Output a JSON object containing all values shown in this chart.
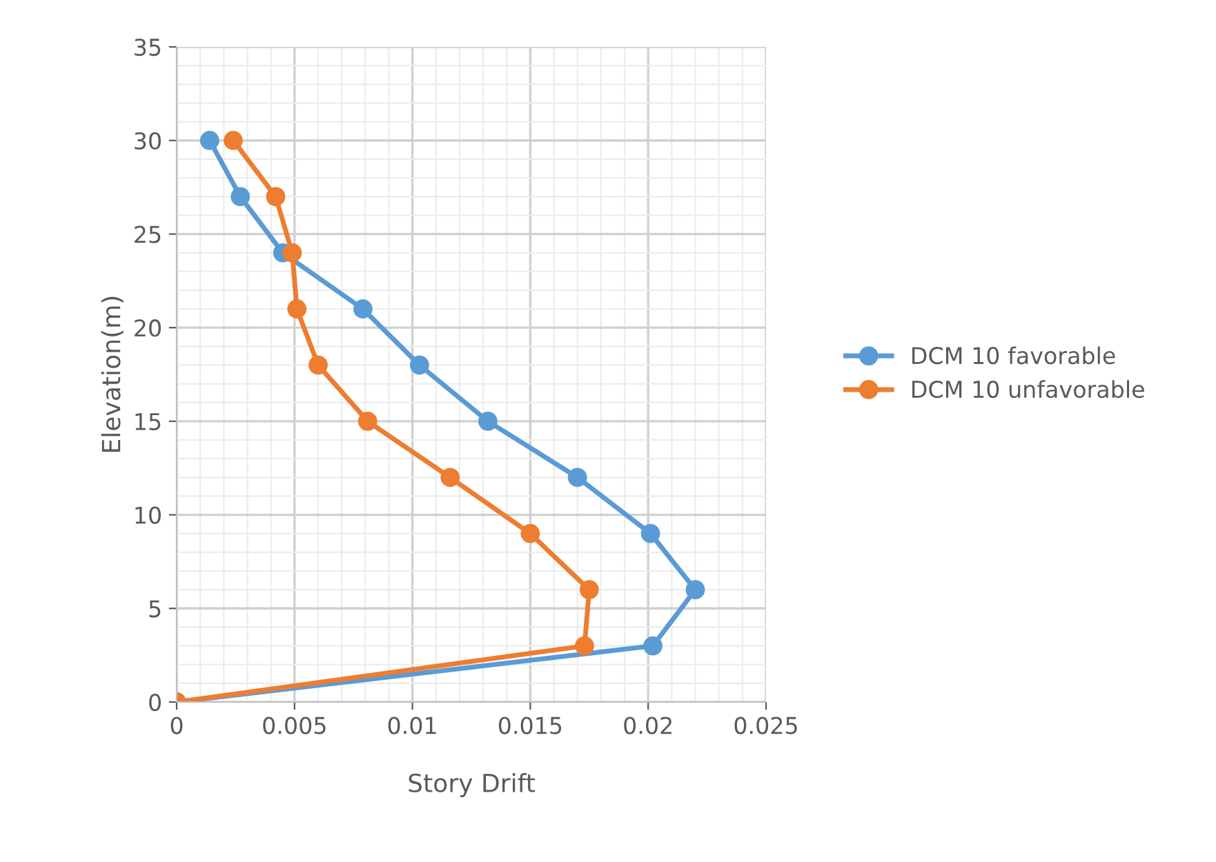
{
  "chart_data": {
    "type": "line",
    "xlabel": "Story Drift",
    "ylabel": "Elevation(m)",
    "series": [
      {
        "name": "DCM 10 favorable",
        "color": "#5b9bd5",
        "x": [
          0.0014,
          0.0027,
          0.0045,
          0.0079,
          0.0103,
          0.0132,
          0.017,
          0.0201,
          0.022,
          0.0202,
          0
        ],
        "values": [
          30,
          27,
          24,
          21,
          18,
          15,
          12,
          9,
          6,
          3,
          0
        ]
      },
      {
        "name": "DCM 10 unfavorable",
        "color": "#ed7d31",
        "x": [
          0.0024,
          0.0042,
          0.0049,
          0.0051,
          0.006,
          0.0081,
          0.0116,
          0.015,
          0.0175,
          0.0173,
          0
        ],
        "values": [
          30,
          27,
          24,
          21,
          18,
          15,
          12,
          9,
          6,
          3,
          0
        ]
      }
    ],
    "xlim": [
      0,
      0.025
    ],
    "xticks": [
      0,
      0.005,
      0.01,
      0.015,
      0.02,
      0.025
    ],
    "ylim": [
      0,
      35
    ],
    "yticks": [
      0,
      5,
      10,
      15,
      20,
      25,
      30,
      35
    ],
    "grid": true,
    "legend": "right",
    "marker": "circle",
    "line_style": "solid"
  }
}
